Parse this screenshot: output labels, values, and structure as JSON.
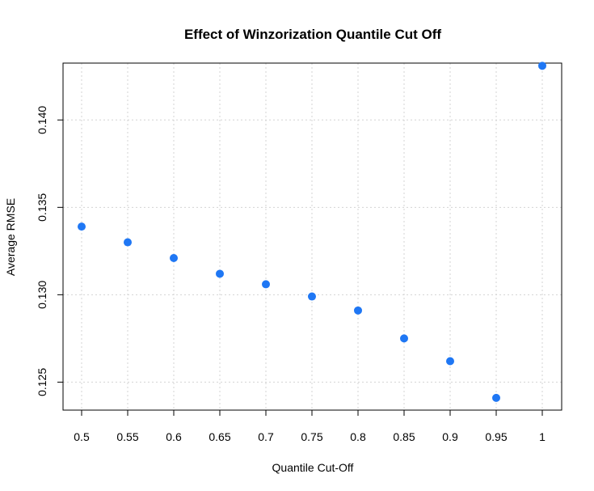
{
  "chart_data": {
    "type": "scatter",
    "title": "Effect of Winzorization Quantile Cut Off",
    "xlabel": "Quantile Cut-Off",
    "ylabel": "Average RMSE",
    "xlim": [
      0.5,
      1.0
    ],
    "ylim": [
      0.1237,
      0.1433
    ],
    "x_ticks": [
      "0.5",
      "0.55",
      "0.6",
      "0.65",
      "0.7",
      "0.75",
      "0.8",
      "0.85",
      "0.9",
      "0.95",
      "1"
    ],
    "y_ticks": [
      "0.125",
      "0.130",
      "0.135",
      "0.140"
    ],
    "grid": true,
    "marker_color": "#1f77f4",
    "points": [
      {
        "x": 0.5,
        "y": 0.1339
      },
      {
        "x": 0.55,
        "y": 0.133
      },
      {
        "x": 0.6,
        "y": 0.1321
      },
      {
        "x": 0.65,
        "y": 0.1312
      },
      {
        "x": 0.7,
        "y": 0.1306
      },
      {
        "x": 0.75,
        "y": 0.1299
      },
      {
        "x": 0.8,
        "y": 0.1291
      },
      {
        "x": 0.85,
        "y": 0.1275
      },
      {
        "x": 0.9,
        "y": 0.1262
      },
      {
        "x": 0.95,
        "y": 0.1241
      },
      {
        "x": 1.0,
        "y": 0.1431
      }
    ]
  }
}
